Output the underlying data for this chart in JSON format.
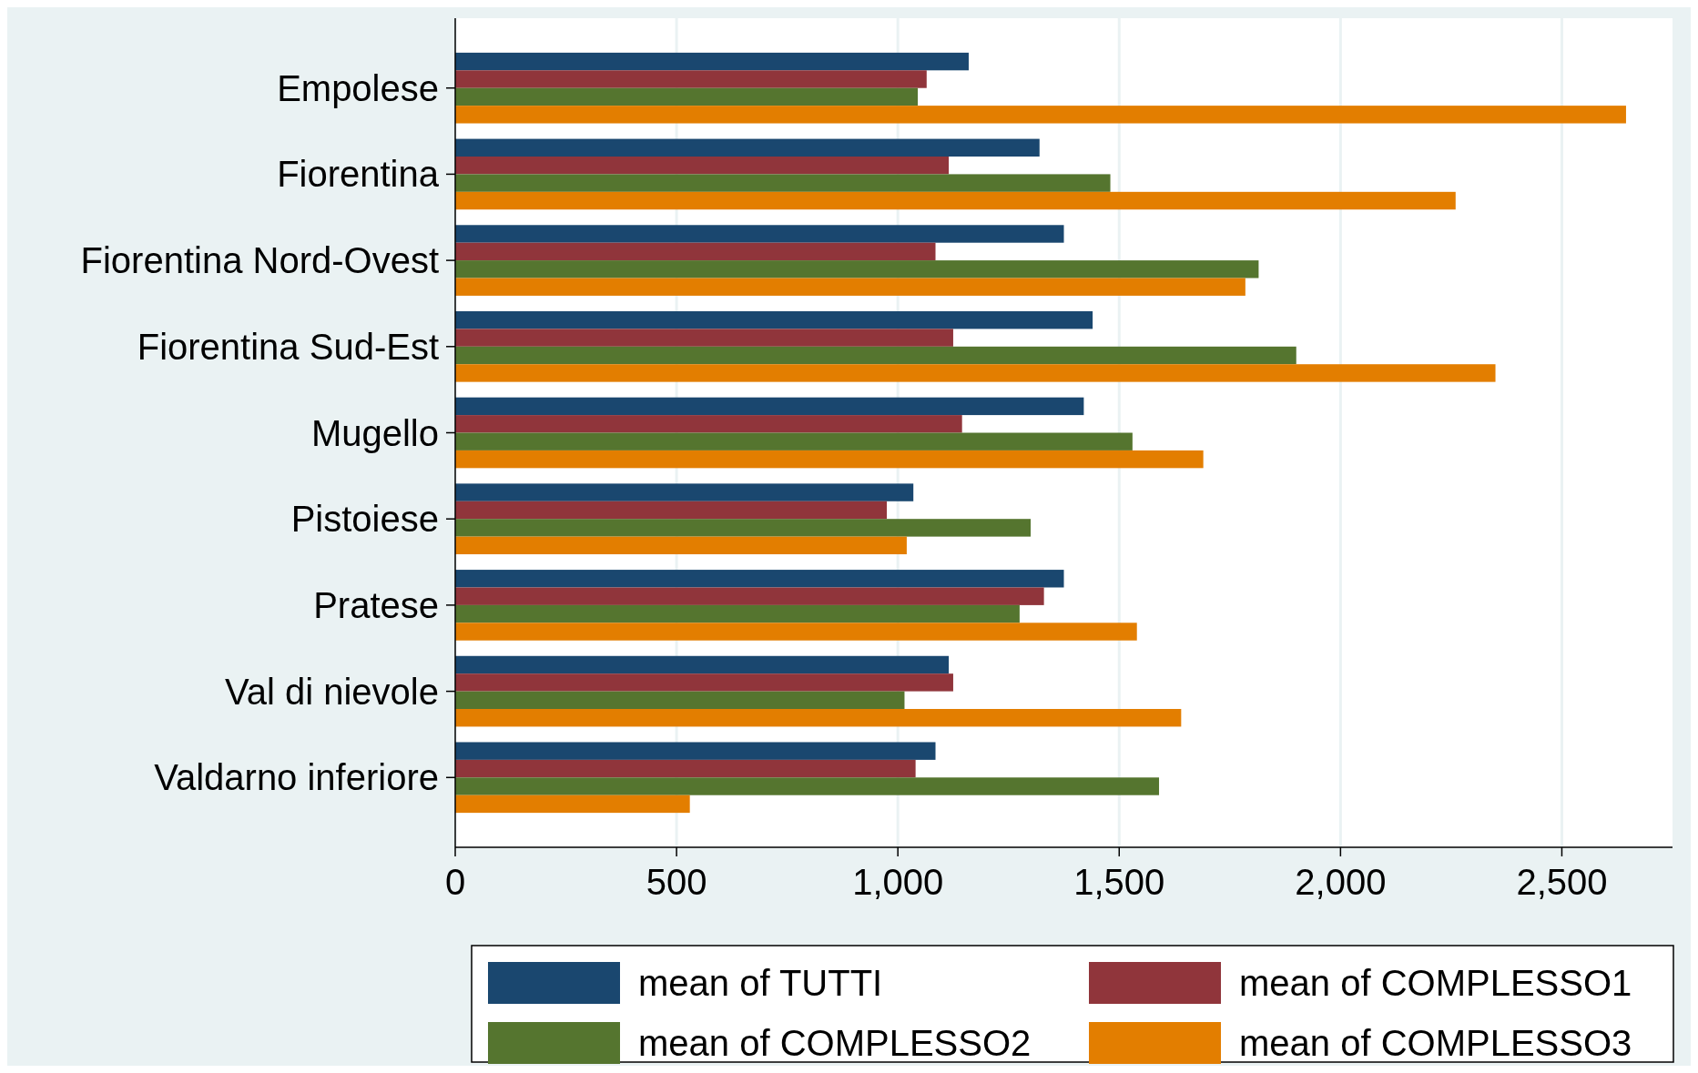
{
  "chart_data": {
    "type": "bar",
    "orientation": "horizontal",
    "categories": [
      "Empolese",
      "Fiorentina",
      "Fiorentina Nord-Ovest",
      "Fiorentina Sud-Est",
      "Mugello",
      "Pistoiese",
      "Pratese",
      "Val di nievole",
      "Valdarno inferiore"
    ],
    "series": [
      {
        "name": "mean of TUTTI",
        "color": "#1a476f",
        "values": [
          1160,
          1320,
          1375,
          1440,
          1420,
          1035,
          1375,
          1115,
          1085
        ]
      },
      {
        "name": "mean of COMPLESSO1",
        "color": "#90353b",
        "values": [
          1065,
          1115,
          1085,
          1125,
          1145,
          975,
          1330,
          1125,
          1040
        ]
      },
      {
        "name": "mean of COMPLESSO2",
        "color": "#55752f",
        "values": [
          1045,
          1480,
          1815,
          1900,
          1530,
          1300,
          1275,
          1015,
          1590
        ]
      },
      {
        "name": "mean of COMPLESSO3",
        "color": "#e37e00",
        "values": [
          2645,
          2260,
          1785,
          2350,
          1690,
          1020,
          1540,
          1640,
          530
        ]
      }
    ],
    "xlim": [
      0,
      2750
    ],
    "xticks": [
      0,
      {
        "value": 500,
        "label": "500"
      },
      {
        "value": 1000,
        "label": "1,000"
      },
      {
        "value": 1500,
        "label": "1,500"
      },
      {
        "value": 2000,
        "label": "2,000"
      },
      {
        "value": 2500,
        "label": "2,500"
      }
    ],
    "grid": "x",
    "legend": "bottom"
  }
}
